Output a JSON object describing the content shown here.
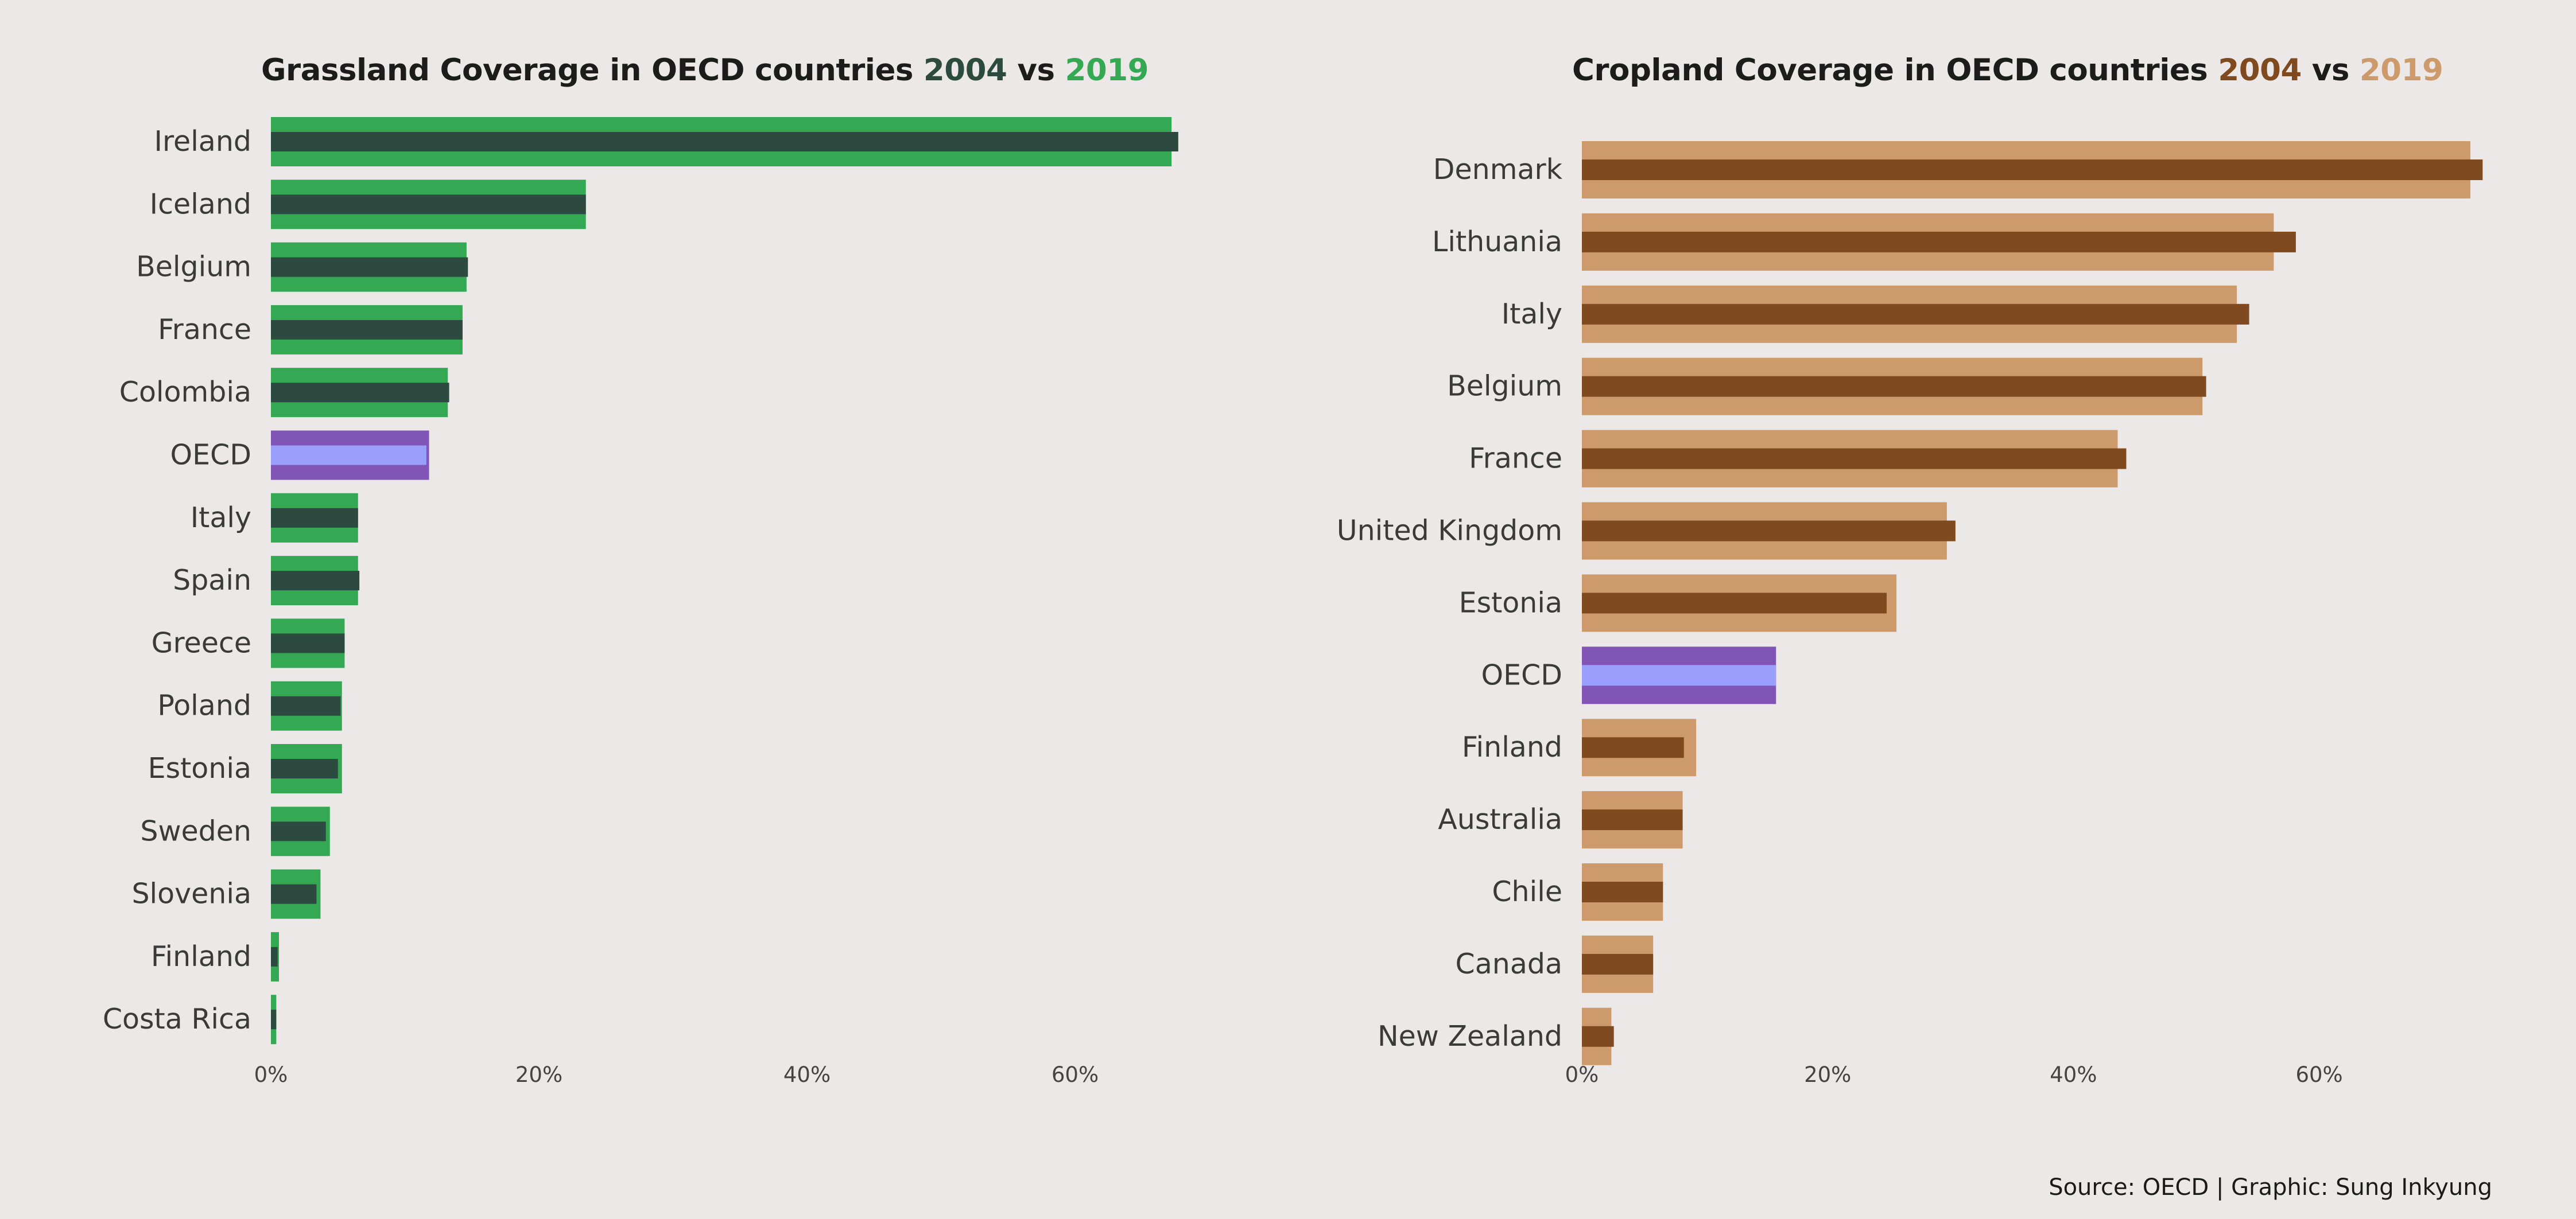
{
  "chart_data": [
    {
      "type": "bar",
      "orientation": "horizontal",
      "title_prefix": "Grassland Coverage in OECD countries",
      "title_year_a": "2004",
      "title_vs": "vs",
      "title_year_b": "2019",
      "categories": [
        "Ireland",
        "Iceland",
        "Belgium",
        "France",
        "Colombia",
        "OECD",
        "Italy",
        "Spain",
        "Greece",
        "Poland",
        "Estonia",
        "Sweden",
        "Slovenia",
        "Finland",
        "Costa Rica"
      ],
      "series": [
        {
          "name": "2019",
          "values": [
            67.2,
            23.5,
            14.6,
            14.3,
            13.2,
            11.8,
            6.5,
            6.5,
            5.5,
            5.3,
            5.3,
            4.4,
            3.7,
            0.6,
            0.4
          ]
        },
        {
          "name": "2004",
          "values": [
            67.7,
            23.5,
            14.7,
            14.3,
            13.3,
            11.6,
            6.5,
            6.6,
            5.5,
            5.2,
            5.0,
            4.1,
            3.4,
            0.5,
            0.4
          ]
        }
      ],
      "highlight_category": "OECD",
      "colors": {
        "2019": "#35a853",
        "2004": "#2c4a3f",
        "highlight_2019": "#8055b5",
        "highlight_2004": "#9b9ffc",
        "year_a_text": "#2c4a3f",
        "year_b_text": "#35a853"
      },
      "xlim": [
        0,
        68
      ],
      "x_ticks": [
        0,
        20,
        40,
        60
      ],
      "x_tick_labels": [
        "0%",
        "20%",
        "40%",
        "60%"
      ],
      "grid": false
    },
    {
      "type": "bar",
      "orientation": "horizontal",
      "title_prefix": "Cropland Coverage in OECD countries",
      "title_year_a": "2004",
      "title_vs": "vs",
      "title_year_b": "2019",
      "categories": [
        "Denmark",
        "Lithuania",
        "Italy",
        "Belgium",
        "France",
        "United Kingdom",
        "Estonia",
        "OECD",
        "Finland",
        "Australia",
        "Chile",
        "Canada",
        "New Zealand"
      ],
      "series": [
        {
          "name": "2019",
          "values": [
            72.3,
            56.3,
            53.3,
            50.5,
            43.6,
            29.7,
            25.6,
            15.8,
            9.3,
            8.2,
            6.6,
            5.8,
            2.4
          ]
        },
        {
          "name": "2004",
          "values": [
            73.3,
            58.1,
            54.3,
            50.8,
            44.3,
            30.4,
            24.8,
            15.8,
            8.3,
            8.2,
            6.6,
            5.8,
            2.6
          ]
        }
      ],
      "highlight_category": "OECD",
      "colors": {
        "2019": "#cc9a6b",
        "2004": "#7f4a1f",
        "highlight_2019": "#8055b5",
        "highlight_2004": "#9b9ffc",
        "year_a_text": "#7f4a1f",
        "year_b_text": "#cc9a6b"
      },
      "xlim": [
        0,
        74
      ],
      "x_ticks": [
        0,
        20,
        40,
        60
      ],
      "x_tick_labels": [
        "0%",
        "20%",
        "40%",
        "60%"
      ],
      "grid": false
    }
  ],
  "footer": {
    "source": "Source: OECD | Graphic: Sung Inkyung"
  }
}
